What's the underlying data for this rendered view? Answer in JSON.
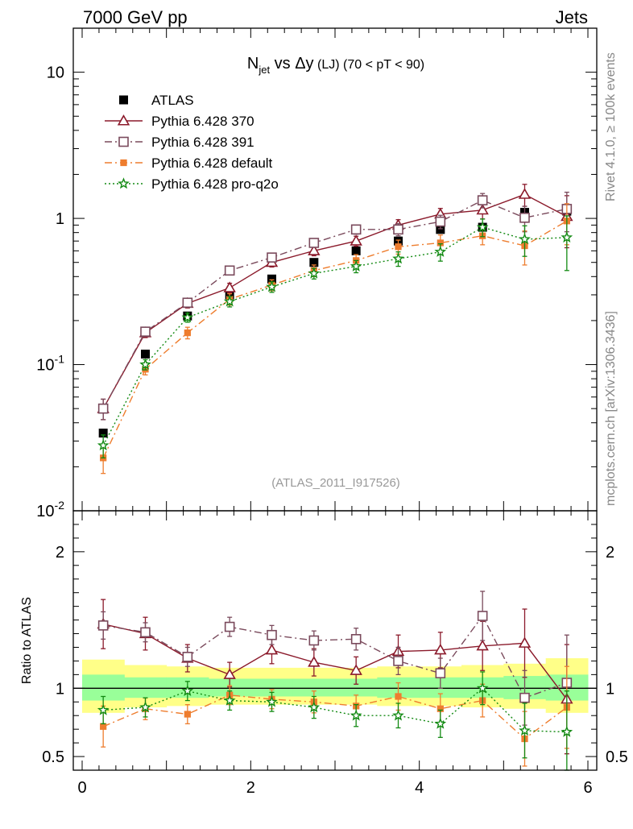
{
  "header": {
    "left": "7000 GeV pp",
    "right": "Jets"
  },
  "side": {
    "rivet": "Rivet 4.1.0, ≥ 100k events",
    "mcplots": "mcplots.cern.ch [arXiv:1306.3436]"
  },
  "title": {
    "n": "N",
    "sub": "jet",
    "rest": " vs Δy",
    "lj": " (LJ)",
    "cut": " (70 < pT <  90)"
  },
  "chart_data": {
    "type": "scatter",
    "analysis_label": "(ATLAS_2011_I917526)",
    "xlim": [
      0,
      6
    ],
    "ylim": [
      0.01,
      20
    ],
    "ylog": true,
    "x_ticks": [
      "0",
      "2",
      "4",
      "6"
    ],
    "y_ticks": [
      {
        "base": "10",
        "exp": "-2",
        "value": 0.01
      },
      {
        "base": "10",
        "exp": "-1",
        "value": 0.1
      },
      {
        "base": "1",
        "exp": "",
        "value": 1
      },
      {
        "base": "10",
        "exp": "",
        "value": 10
      }
    ],
    "x": [
      0.25,
      0.75,
      1.25,
      1.75,
      2.25,
      2.75,
      3.25,
      3.75,
      4.25,
      4.75,
      5.25,
      5.75
    ],
    "series": [
      {
        "name": "ATLAS",
        "color": "#000000",
        "marker": "square-filled",
        "line": "none",
        "values": [
          0.034,
          0.118,
          0.215,
          0.3,
          0.385,
          0.5,
          0.6,
          0.7,
          0.84,
          0.87,
          1.1,
          1.12
        ],
        "errors": [
          0.002,
          0.005,
          0.007,
          0.01,
          0.012,
          0.015,
          0.02,
          0.025,
          0.03,
          0.04,
          0.06,
          0.08
        ]
      },
      {
        "name": "Pythia 6.428 370",
        "color": "#8b1a2b",
        "marker": "triangle-open",
        "line": "solid",
        "values": [
          0.05,
          0.165,
          0.262,
          0.335,
          0.5,
          0.6,
          0.7,
          0.9,
          1.07,
          1.14,
          1.46,
          1.03
        ],
        "errors": [
          0.008,
          0.012,
          0.018,
          0.025,
          0.035,
          0.045,
          0.055,
          0.08,
          0.1,
          0.15,
          0.25,
          0.4
        ]
      },
      {
        "name": "Pythia 6.428 391",
        "color": "#7a4a5c",
        "marker": "square-open",
        "line": "dashdot",
        "values": [
          0.05,
          0.168,
          0.265,
          0.44,
          0.54,
          0.68,
          0.84,
          0.84,
          0.95,
          1.33,
          1.01,
          1.16
        ],
        "errors": [
          0.008,
          0.012,
          0.018,
          0.03,
          0.035,
          0.045,
          0.06,
          0.08,
          0.1,
          0.15,
          0.2,
          0.35
        ]
      },
      {
        "name": "Pythia 6.428 default",
        "color": "#ee7d2e",
        "marker": "square-small",
        "line": "dashdot",
        "values": [
          0.023,
          0.093,
          0.165,
          0.28,
          0.35,
          0.44,
          0.515,
          0.64,
          0.68,
          0.76,
          0.65,
          0.96
        ],
        "errors": [
          0.005,
          0.008,
          0.015,
          0.025,
          0.03,
          0.04,
          0.05,
          0.07,
          0.09,
          0.1,
          0.17,
          0.3
        ]
      },
      {
        "name": "Pythia 6.428 pro-q2o",
        "color": "#138a13",
        "marker": "star",
        "line": "dotted",
        "values": [
          0.028,
          0.1,
          0.21,
          0.27,
          0.34,
          0.42,
          0.47,
          0.53,
          0.59,
          0.87,
          0.72,
          0.74
        ],
        "errors": [
          0.005,
          0.008,
          0.015,
          0.022,
          0.028,
          0.035,
          0.045,
          0.06,
          0.08,
          0.12,
          0.17,
          0.3
        ]
      }
    ],
    "ratio": {
      "ylabel": "Ratio to ATLAS",
      "ylim": [
        0.4,
        2.3
      ],
      "y_ticks": [
        "0.5",
        "1",
        "2"
      ],
      "y_tick_values": [
        0.5,
        1,
        2
      ],
      "band_yellow": [
        [
          0.82,
          1.21
        ],
        [
          0.86,
          1.17
        ],
        [
          0.87,
          1.16
        ],
        [
          0.88,
          1.15
        ],
        [
          0.88,
          1.15
        ],
        [
          0.88,
          1.15
        ],
        [
          0.88,
          1.15
        ],
        [
          0.87,
          1.16
        ],
        [
          0.87,
          1.16
        ],
        [
          0.86,
          1.17
        ],
        [
          0.85,
          1.18
        ],
        [
          0.82,
          1.22
        ]
      ],
      "band_green": [
        [
          0.91,
          1.1
        ],
        [
          0.93,
          1.08
        ],
        [
          0.93,
          1.08
        ],
        [
          0.94,
          1.07
        ],
        [
          0.94,
          1.07
        ],
        [
          0.94,
          1.07
        ],
        [
          0.94,
          1.07
        ],
        [
          0.93,
          1.08
        ],
        [
          0.93,
          1.08
        ],
        [
          0.93,
          1.08
        ],
        [
          0.92,
          1.09
        ],
        [
          0.91,
          1.1
        ]
      ],
      "series": [
        {
          "name": "Pythia 6.428 370",
          "values": [
            1.47,
            1.4,
            1.22,
            1.1,
            1.28,
            1.19,
            1.13,
            1.27,
            1.28,
            1.31,
            1.33,
            0.92
          ],
          "errors": [
            0.18,
            0.12,
            0.1,
            0.09,
            0.1,
            0.1,
            0.1,
            0.12,
            0.13,
            0.18,
            0.25,
            0.4
          ]
        },
        {
          "name": "Pythia 6.428 391",
          "values": [
            1.46,
            1.41,
            1.23,
            1.45,
            1.39,
            1.35,
            1.36,
            1.2,
            1.11,
            1.53,
            0.93,
            1.04
          ],
          "errors": [
            0.1,
            0.07,
            0.07,
            0.07,
            0.07,
            0.07,
            0.08,
            0.1,
            0.11,
            0.18,
            0.2,
            0.35
          ]
        },
        {
          "name": "Pythia 6.428 default",
          "values": [
            0.72,
            0.85,
            0.81,
            0.95,
            0.92,
            0.9,
            0.87,
            0.94,
            0.85,
            0.91,
            0.63,
            0.86
          ],
          "errors": [
            0.15,
            0.08,
            0.07,
            0.07,
            0.07,
            0.08,
            0.08,
            0.1,
            0.11,
            0.12,
            0.2,
            0.3
          ]
        },
        {
          "name": "Pythia 6.428 pro-q2o",
          "values": [
            0.84,
            0.86,
            0.98,
            0.91,
            0.9,
            0.86,
            0.8,
            0.8,
            0.74,
            1.0,
            0.69,
            0.68
          ],
          "errors": [
            0.1,
            0.07,
            0.07,
            0.07,
            0.07,
            0.08,
            0.08,
            0.09,
            0.1,
            0.12,
            0.2,
            0.3
          ]
        }
      ]
    }
  }
}
